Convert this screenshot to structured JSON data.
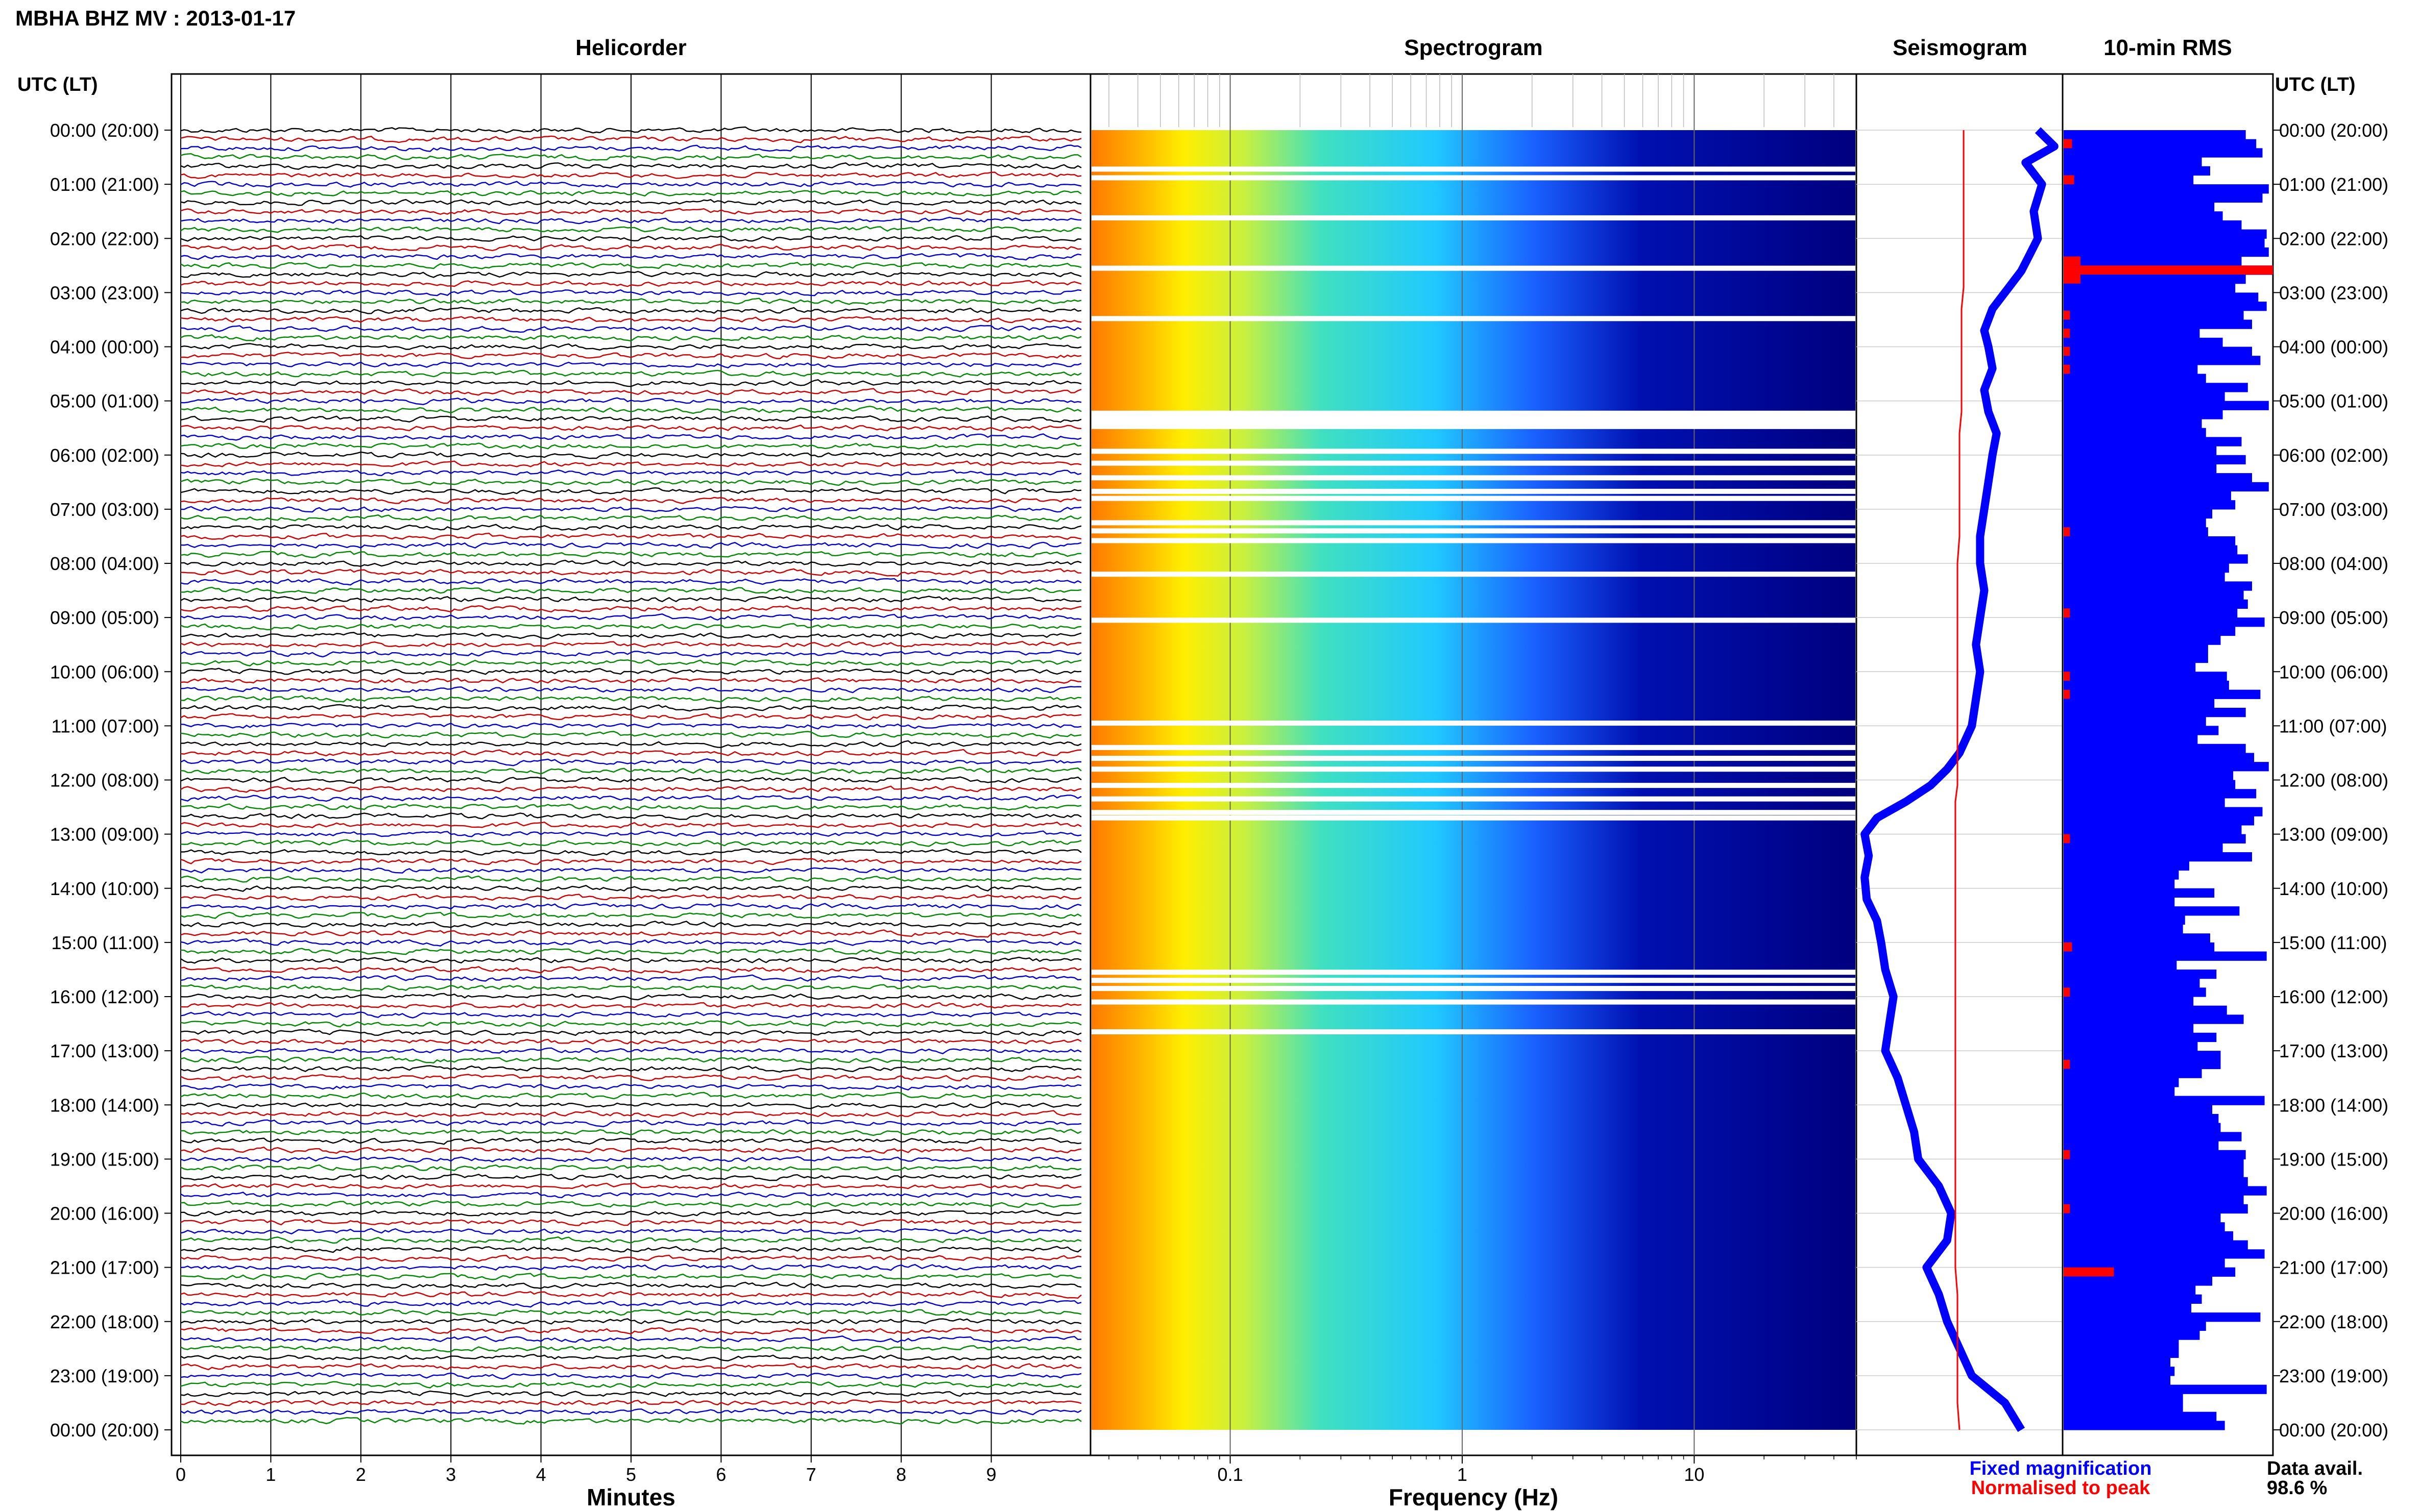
{
  "header": {
    "station_title": "MBHA BHZ MV : 2013-01-17",
    "utc_label": "UTC (LT)"
  },
  "panels": {
    "helicorder_title": "Helicorder",
    "spectrogram_title": "Spectrogram",
    "seismogram_title": "Seismogram",
    "rms_title": "10-min RMS"
  },
  "footer": {
    "fixed_magnification": "Fixed magnification",
    "normalised_to_peak": "Normalised to peak",
    "data_avail_label": "Data avail.",
    "data_avail_value": "98.6 %"
  },
  "colors": {
    "helicorder_traces": [
      "#000000",
      "#cc0000",
      "#0000cc",
      "#008800"
    ],
    "spectrogram_high": "#ff8800",
    "spectrogram_mid": "#ffff00",
    "spectrogram_low": "#00007f",
    "seismogram_fixed": "#0000ff",
    "seismogram_normalised": "#ff0000",
    "rms_bar": "#0000ff",
    "rms_flag": "#ff0000"
  },
  "chart_data": [
    {
      "type": "line",
      "panel": "helicorder",
      "title": "Helicorder",
      "xlabel": "Minutes",
      "xlim": [
        0,
        10
      ],
      "x_ticks": [
        "0",
        "1",
        "2",
        "3",
        "4",
        "5",
        "6",
        "7",
        "8",
        "9"
      ],
      "row_minutes": 10,
      "rows": 144,
      "y_tick_labels": [
        "00:00 (20:00)",
        "01:00 (21:00)",
        "02:00 (22:00)",
        "03:00 (23:00)",
        "04:00 (00:00)",
        "05:00 (01:00)",
        "06:00 (02:00)",
        "07:00 (03:00)",
        "08:00 (04:00)",
        "09:00 (05:00)",
        "10:00 (06:00)",
        "11:00 (07:00)",
        "12:00 (08:00)",
        "13:00 (09:00)",
        "14:00 (10:00)",
        "15:00 (11:00)",
        "16:00 (12:00)",
        "17:00 (13:00)",
        "18:00 (14:00)",
        "19:00 (15:00)",
        "20:00 (16:00)",
        "21:00 (17:00)",
        "22:00 (18:00)",
        "23:00 (19:00)",
        "00:00 (20:00)"
      ]
    },
    {
      "type": "heatmap",
      "panel": "spectrogram",
      "title": "Spectrogram",
      "xlabel": "Frequency (Hz)",
      "xscale": "log",
      "xlim": [
        0.025,
        50
      ],
      "x_ticks": [
        0.1,
        1,
        10
      ],
      "x_tick_labels": [
        "0.1",
        "1",
        "10"
      ],
      "gap_hours": [
        0.72,
        0.88,
        1.62,
        2.55,
        3.48,
        5.25,
        5.4,
        5.93,
        6.15,
        6.42,
        6.67,
        6.8,
        7.25,
        7.4,
        7.58,
        8.2,
        9.05,
        10.95,
        11.4,
        11.6,
        11.8,
        12.1,
        12.35,
        12.6,
        12.7,
        15.55,
        15.7,
        15.85,
        16.1,
        16.65
      ]
    },
    {
      "type": "line",
      "panel": "seismogram",
      "title": "Seismogram",
      "y_hours": [
        0,
        0.3,
        0.6,
        1.0,
        1.5,
        2.0,
        2.3,
        2.6,
        2.9,
        3.3,
        3.7,
        4.0,
        4.4,
        4.8,
        5.2,
        5.6,
        6.0,
        6.5,
        7.0,
        7.5,
        8.0,
        8.5,
        9.0,
        9.5,
        10.0,
        10.5,
        11.0,
        11.5,
        11.8,
        12.1,
        12.4,
        12.7,
        13.0,
        13.4,
        13.8,
        14.2,
        14.6,
        15.0,
        15.5,
        16.0,
        16.5,
        17.0,
        17.5,
        18.0,
        18.5,
        19.0,
        19.5,
        20.0,
        20.5,
        21.0,
        21.5,
        22.0,
        22.5,
        23.0,
        23.5,
        24.0
      ],
      "series": [
        {
          "values": [
            0.88,
            0.96,
            0.82,
            0.9,
            0.86,
            0.88,
            0.84,
            0.8,
            0.74,
            0.66,
            0.62,
            0.64,
            0.66,
            0.62,
            0.64,
            0.68,
            0.66,
            0.64,
            0.62,
            0.6,
            0.6,
            0.62,
            0.6,
            0.58,
            0.6,
            0.58,
            0.56,
            0.5,
            0.44,
            0.36,
            0.24,
            0.1,
            0.04,
            0.06,
            0.04,
            0.05,
            0.1,
            0.12,
            0.14,
            0.18,
            0.16,
            0.14,
            0.2,
            0.24,
            0.28,
            0.3,
            0.4,
            0.46,
            0.44,
            0.34,
            0.4,
            0.44,
            0.5,
            0.56,
            0.72,
            0.8
          ]
        },
        {
          "values": [
            0.52,
            0.52,
            0.52,
            0.52,
            0.52,
            0.52,
            0.52,
            0.52,
            0.52,
            0.51,
            0.51,
            0.51,
            0.51,
            0.51,
            0.51,
            0.5,
            0.5,
            0.5,
            0.5,
            0.5,
            0.49,
            0.49,
            0.49,
            0.49,
            0.49,
            0.49,
            0.49,
            0.49,
            0.49,
            0.49,
            0.48,
            0.48,
            0.48,
            0.48,
            0.48,
            0.48,
            0.48,
            0.48,
            0.48,
            0.48,
            0.48,
            0.48,
            0.48,
            0.48,
            0.48,
            0.48,
            0.48,
            0.48,
            0.48,
            0.48,
            0.49,
            0.49,
            0.49,
            0.49,
            0.49,
            0.5
          ]
        }
      ]
    },
    {
      "type": "bar",
      "panel": "rms",
      "title": "10-min RMS",
      "values": [
        0.87,
        0.92,
        0.95,
        0.66,
        0.7,
        0.62,
        0.98,
        0.95,
        0.72,
        0.76,
        0.85,
        0.97,
        0.96,
        0.98,
        0.85,
        1.0,
        0.87,
        0.82,
        0.93,
        0.97,
        0.86,
        0.9,
        0.65,
        0.76,
        0.9,
        0.94,
        0.64,
        0.68,
        0.88,
        0.77,
        0.98,
        0.76,
        0.66,
        0.68,
        0.85,
        0.73,
        0.87,
        0.73,
        0.9,
        0.98,
        0.8,
        0.82,
        0.71,
        0.68,
        0.69,
        0.82,
        0.83,
        0.88,
        0.79,
        0.77,
        0.9,
        0.86,
        0.88,
        0.83,
        0.96,
        0.82,
        0.75,
        0.69,
        0.69,
        0.63,
        0.78,
        0.79,
        0.94,
        0.72,
        0.87,
        0.68,
        0.74,
        0.64,
        0.87,
        0.91,
        0.98,
        0.81,
        0.82,
        0.92,
        0.77,
        0.95,
        0.91,
        0.85,
        0.87,
        0.76,
        0.9,
        0.6,
        0.55,
        0.53,
        0.72,
        0.53,
        0.84,
        0.58,
        0.57,
        0.7,
        0.72,
        0.97,
        0.54,
        0.73,
        0.65,
        0.68,
        0.62,
        0.78,
        0.86,
        0.62,
        0.73,
        0.64,
        0.75,
        0.75,
        0.66,
        0.55,
        0.53,
        0.96,
        0.71,
        0.74,
        0.75,
        0.85,
        0.74,
        0.87,
        0.86,
        0.86,
        0.88,
        0.97,
        0.86,
        0.88,
        0.75,
        0.77,
        0.81,
        0.88,
        0.96,
        0.77,
        0.82,
        0.71,
        0.63,
        0.66,
        0.61,
        0.94,
        0.68,
        0.65,
        0.55,
        0.55,
        0.51,
        0.53,
        0.51,
        0.97,
        0.57,
        0.57,
        0.73,
        0.77
      ],
      "flag_rows": [
        1,
        5,
        14,
        15,
        16,
        20,
        22,
        24,
        26,
        44,
        53,
        60,
        62,
        78,
        90,
        95,
        103,
        113,
        119
      ],
      "flag_widths": [
        0.04,
        0.05,
        0.08,
        1.0,
        0.08,
        0.03,
        0.03,
        0.03,
        0.03,
        0.03,
        0.03,
        0.03,
        0.03,
        0.03,
        0.04,
        0.03,
        0.03,
        0.03,
        0.03
      ],
      "flag_wide_rows": [
        126
      ],
      "flag_wide_width": 0.24
    }
  ]
}
